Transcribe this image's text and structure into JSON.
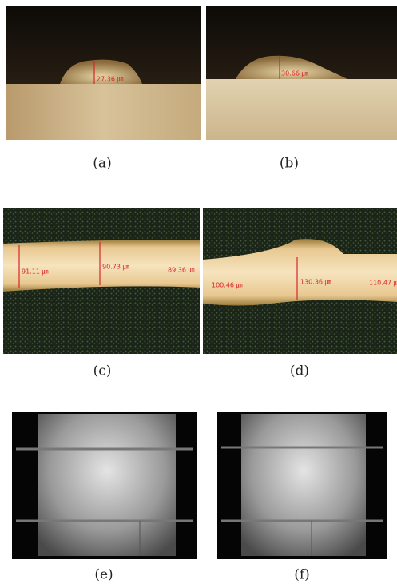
{
  "figure": {
    "panels": [
      {
        "label": "(a)",
        "annotations": [
          "27.36 ㎛"
        ]
      },
      {
        "label": "(b)",
        "annotations": [
          "30.66 ㎛"
        ]
      },
      {
        "label": "(c)",
        "annotations": [
          "91.11 ㎛",
          "90.73 ㎛",
          "89.36 ㎛"
        ]
      },
      {
        "label": "(d)",
        "annotations": [
          "100.46 ㎛",
          "130.36 ㎛",
          "110.47 ㎛"
        ]
      },
      {
        "label": "(e)",
        "annotations": []
      },
      {
        "label": "(f)",
        "annotations": []
      }
    ]
  }
}
